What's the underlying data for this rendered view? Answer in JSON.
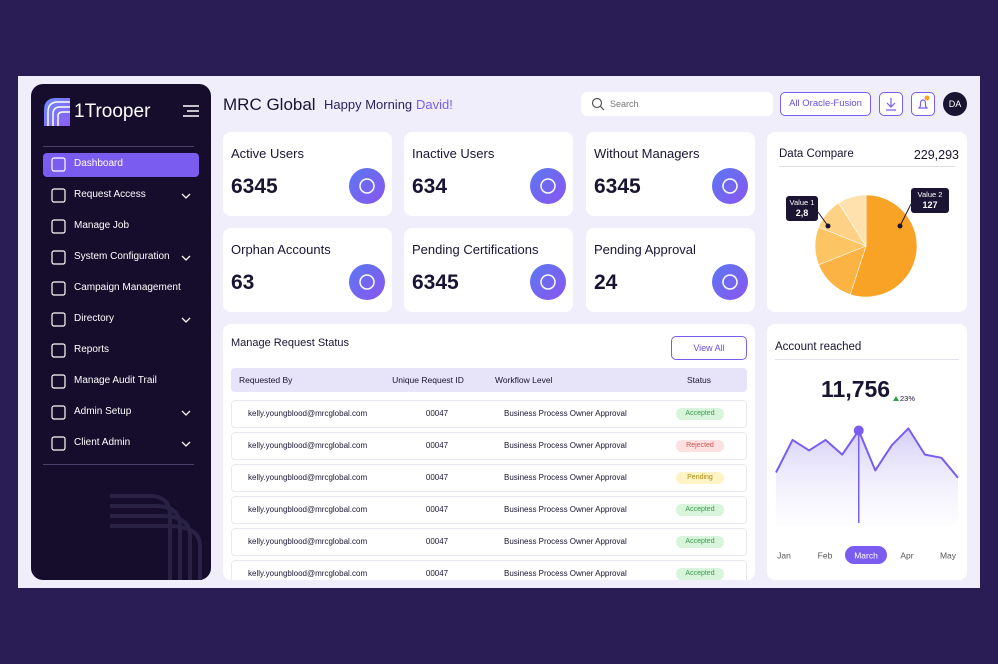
{
  "sidebar": {
    "brand": "1Trooper",
    "menu": [
      {
        "label": "Dashboard",
        "expandable": false,
        "active": true
      },
      {
        "label": "Request Access",
        "expandable": true,
        "active": false
      },
      {
        "label": "Manage Job",
        "expandable": false,
        "active": false
      },
      {
        "label": "System Configuration",
        "expandable": true,
        "active": false
      },
      {
        "label": "Campaign Management",
        "expandable": false,
        "active": false
      },
      {
        "label": "Directory",
        "expandable": true,
        "active": false
      },
      {
        "label": "Reports",
        "expandable": false,
        "active": false
      },
      {
        "label": "Manage Audit Trail",
        "expandable": false,
        "active": false
      },
      {
        "label": "Admin Setup",
        "expandable": true,
        "active": false
      },
      {
        "label": "Client Admin",
        "expandable": true,
        "active": false
      }
    ]
  },
  "header": {
    "company": "MRC Global",
    "greeting": "Happy Morning",
    "user": "David!",
    "search_placeholder": "Search",
    "filter": "All Oracle-Fusion",
    "avatar": "DA"
  },
  "cards": [
    {
      "title": "Active Users",
      "value": 6345
    },
    {
      "title": "Inactive Users",
      "value": 634
    },
    {
      "title": "Without Managers",
      "value": 6345
    },
    {
      "title": "Orphan Accounts",
      "value": 63
    },
    {
      "title": "Pending Certifications",
      "value": 6345
    },
    {
      "title": "Pending Approval",
      "value": 24
    }
  ],
  "table": {
    "title": "Manage Request Status",
    "action": "View All",
    "columns": [
      "Requested By",
      "Unique Request ID",
      "Workflow Level",
      "Status"
    ],
    "rows": [
      {
        "requested_by": "kelly.youngblood@mrcglobal.com",
        "request_id": "00047",
        "workflow": "Business Process Owner Approval",
        "status": "Accepted",
        "tone": "green"
      },
      {
        "requested_by": "kelly.youngblood@mrcglobal.com",
        "request_id": "00047",
        "workflow": "Business Process Owner Approval",
        "status": "Rejected",
        "tone": "red"
      },
      {
        "requested_by": "kelly.youngblood@mrcglobal.com",
        "request_id": "00047",
        "workflow": "Business Process Owner Approval",
        "status": "Pending",
        "tone": "yellow"
      },
      {
        "requested_by": "kelly.youngblood@mrcglobal.com",
        "request_id": "00047",
        "workflow": "Business Process Owner Approval",
        "status": "Accepted",
        "tone": "green"
      },
      {
        "requested_by": "kelly.youngblood@mrcglobal.com",
        "request_id": "00047",
        "workflow": "Business Process Owner Approval",
        "status": "Accepted",
        "tone": "green"
      },
      {
        "requested_by": "kelly.youngblood@mrcglobal.com",
        "request_id": "00047",
        "workflow": "Business Process Owner Approval",
        "status": "Accepted",
        "tone": "green"
      }
    ]
  },
  "data_compare": {
    "title": "Data Compare",
    "total": "229,293",
    "slices": [
      {
        "value": 55,
        "color": "#f9a326"
      },
      {
        "value": 14,
        "color": "#fbb443"
      },
      {
        "value": 12,
        "color": "#fcc462"
      },
      {
        "value": 10,
        "color": "#fdd287"
      },
      {
        "value": 9,
        "color": "#fee1ad"
      }
    ],
    "callouts": [
      {
        "name": "Value 1",
        "label": "2,8"
      },
      {
        "name": "Value 2",
        "label": "127"
      }
    ]
  },
  "account_reached": {
    "title": "Account reached",
    "total": "11,756",
    "change": "23%",
    "months": [
      "Jan",
      "Feb",
      "March",
      "Apr",
      "May"
    ],
    "active_month": 2,
    "ylim": [
      0,
      100
    ],
    "values": [
      50,
      81,
      71,
      81,
      67,
      90,
      52,
      76,
      92,
      67,
      64,
      45
    ],
    "marker": 5
  }
}
